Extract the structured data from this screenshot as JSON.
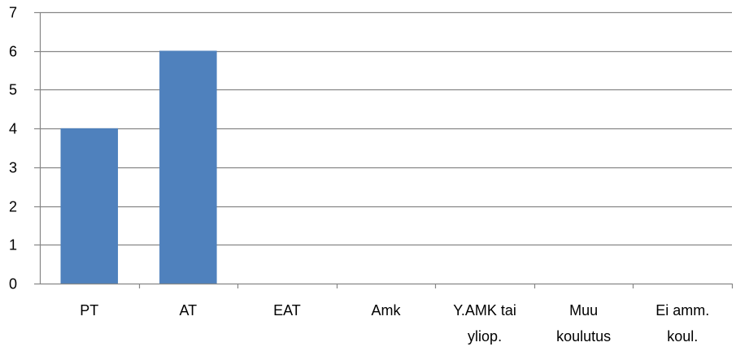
{
  "chart_data": {
    "type": "bar",
    "categories": [
      [
        "PT"
      ],
      [
        "AT"
      ],
      [
        "EAT"
      ],
      [
        "Amk"
      ],
      [
        "Y.AMK tai",
        "yliop."
      ],
      [
        "Muu",
        "koulutus"
      ],
      [
        "Ei amm.",
        "koul."
      ]
    ],
    "values": [
      4,
      6,
      0,
      0,
      0,
      0,
      0
    ],
    "ylim": [
      0,
      7
    ],
    "yticks": [
      0,
      1,
      2,
      3,
      4,
      5,
      6,
      7
    ],
    "grid": true,
    "legend": "none",
    "colors": {
      "bar": "#4F81BD",
      "bar_edge": "#4A7EBB",
      "grid": "#868686",
      "axis": "#868686"
    }
  }
}
